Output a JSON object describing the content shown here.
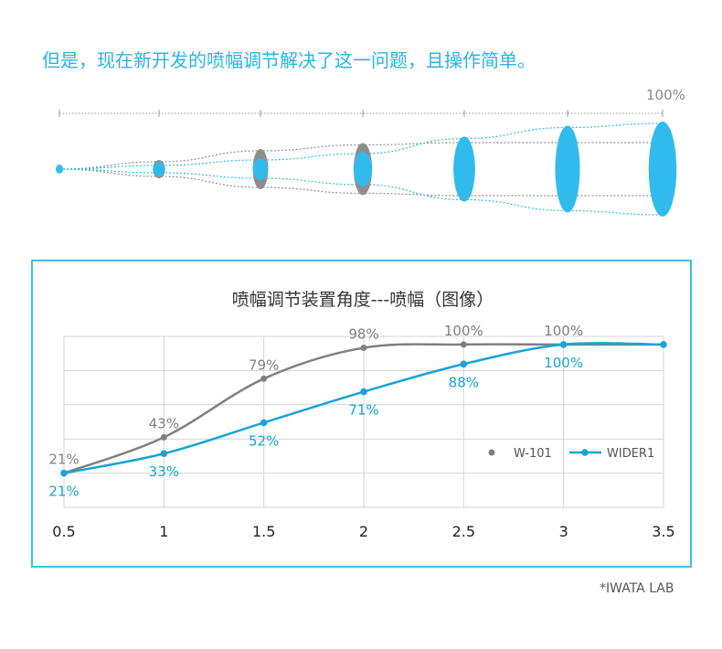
{
  "headline": "但是，现在新开发的喷幅调节解决了这一问题，且操作简单。",
  "spray_diagram": {
    "end_label": "100%",
    "colors": {
      "blue": "#31bbed",
      "gray": "#8e8e8e"
    },
    "gray_widths": [
      0,
      0.16,
      0.4,
      0.53,
      0.58,
      0.58,
      0.58
    ],
    "blue_widths": [
      0,
      0.08,
      0.2,
      0.34,
      0.67,
      0.91,
      1.0
    ]
  },
  "source": "*IWATA LAB",
  "chart_data": {
    "type": "line",
    "title": "喷幅调节装置角度---喷幅（图像）",
    "x": [
      0.5,
      1,
      1.5,
      2,
      2.5,
      3,
      3.5
    ],
    "x_tick_labels": [
      "0.5",
      "1",
      "1.5",
      "2",
      "2.5",
      "3",
      "3.5"
    ],
    "xlim": [
      0.5,
      3.5
    ],
    "ylim": [
      0,
      105
    ],
    "grid": true,
    "legend": "right",
    "series": [
      {
        "name": "W-101",
        "color": "#808080",
        "values": [
          21,
          43,
          79,
          98,
          100,
          100,
          100
        ],
        "labels": [
          "21%",
          "43%",
          "79%",
          "98%",
          "100%",
          "100%",
          null
        ]
      },
      {
        "name": "WIDER1",
        "color": "#1aa3d6",
        "values": [
          21,
          33,
          52,
          71,
          88,
          100,
          100
        ],
        "labels": [
          "21%",
          "33%",
          "52%",
          "71%",
          "88%",
          "100%",
          null
        ]
      }
    ]
  }
}
